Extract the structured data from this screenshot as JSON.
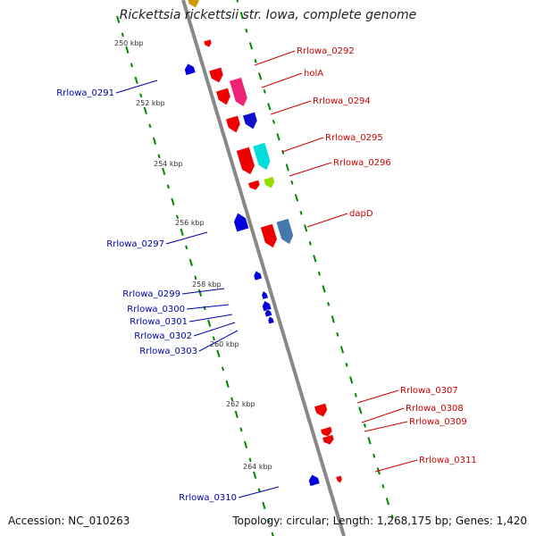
{
  "title": "Rickettsia rickettsii str. Iowa, complete genome",
  "footer": {
    "accession": "Accession: NC_010263",
    "summary": "Topology: circular; Length: 1,268,175 bp; Genes: 1,420"
  },
  "colors": {
    "backbone": "#888888",
    "tick_green": "#008800",
    "label_forward": "#cc0000",
    "label_reverse": "#0000aa",
    "gene_red": "#ee0000",
    "gene_blue": "#0000dd",
    "gene_pink": "#ee2277",
    "gene_navy": "#1111cc",
    "gene_cyan": "#00dddd",
    "gene_lime": "#99dd00",
    "gene_steel": "#4477aa"
  },
  "scale_labels": [
    {
      "text": "250 kbp"
    },
    {
      "text": "252 kbp"
    },
    {
      "text": "254 kbp"
    },
    {
      "text": "256 kbp"
    },
    {
      "text": "258 kbp"
    },
    {
      "text": "260 kbp"
    },
    {
      "text": "262 kbp"
    },
    {
      "text": "264 kbp"
    }
  ],
  "forward_labels": [
    {
      "text": "Rrlowa_0292"
    },
    {
      "text": "holA"
    },
    {
      "text": "Rrlowa_0294"
    },
    {
      "text": "Rrlowa_0295"
    },
    {
      "text": "Rrlowa_0296"
    },
    {
      "text": "dapD"
    },
    {
      "text": "Rrlowa_0307"
    },
    {
      "text": "Rrlowa_0308"
    },
    {
      "text": "Rrlowa_0309"
    },
    {
      "text": "Rrlowa_0311"
    }
  ],
  "reverse_labels": [
    {
      "text": "Rrlowa_0291"
    },
    {
      "text": "Rrlowa_0297"
    },
    {
      "text": "Rrlowa_0299"
    },
    {
      "text": "Rrlowa_0300"
    },
    {
      "text": "Rrlowa_0301"
    },
    {
      "text": "Rrlowa_0302"
    },
    {
      "text": "Rrlowa_0303"
    },
    {
      "text": "Rrlowa_0310"
    }
  ]
}
